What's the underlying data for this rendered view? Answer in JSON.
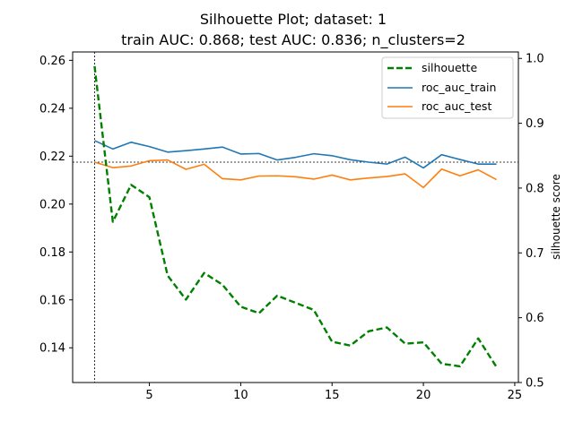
{
  "chart_data": {
    "type": "line",
    "title": "Silhouette Plot; dataset: 1",
    "subtitle": "train AUC: 0.868; test AUC: 0.836; n_clusters=2",
    "xlabel": "",
    "ylabel_left": "",
    "ylabel_right": "silhouette score",
    "xlim": [
      0.8,
      25.2
    ],
    "ylim_left": [
      0.1255,
      0.2635
    ],
    "ylim_right": [
      0.5,
      1.01
    ],
    "x_ticks": [
      5,
      10,
      15,
      20,
      25
    ],
    "y_left_ticks": [
      0.14,
      0.16,
      0.18,
      0.2,
      0.22,
      0.24,
      0.26
    ],
    "y_right_ticks": [
      0.5,
      0.6,
      0.7,
      0.8,
      0.9,
      1.0
    ],
    "reference_lines": {
      "vertical_x": 2,
      "horizontal_y_left": 0.2175
    },
    "legend_position": "upper right",
    "grid": false,
    "x": [
      2,
      3,
      4,
      5,
      6,
      7,
      8,
      9,
      10,
      11,
      12,
      13,
      14,
      15,
      16,
      17,
      18,
      19,
      20,
      21,
      22,
      23,
      24
    ],
    "series": [
      {
        "name": "silhouette",
        "axis": "right",
        "style": "dashed",
        "color": "#008000",
        "values": [
          0.988,
          0.748,
          0.805,
          0.786,
          0.665,
          0.628,
          0.669,
          0.651,
          0.617,
          0.607,
          0.634,
          0.623,
          0.612,
          0.563,
          0.557,
          0.579,
          0.585,
          0.56,
          0.562,
          0.529,
          0.525,
          0.568,
          0.524
        ]
      },
      {
        "name": "roc_auc_train",
        "axis": "left",
        "style": "solid",
        "color": "#1f77b4",
        "values": [
          0.2265,
          0.223,
          0.2258,
          0.224,
          0.2217,
          0.2223,
          0.223,
          0.2238,
          0.2209,
          0.2211,
          0.2184,
          0.2195,
          0.221,
          0.2202,
          0.2185,
          0.2175,
          0.2167,
          0.2196,
          0.2151,
          0.2206,
          0.2186,
          0.2167,
          0.2167
        ]
      },
      {
        "name": "roc_auc_test",
        "axis": "left",
        "style": "solid",
        "color": "#ff7f0e",
        "values": [
          0.2175,
          0.2152,
          0.2159,
          0.2181,
          0.2184,
          0.2145,
          0.2166,
          0.2106,
          0.2101,
          0.2117,
          0.2118,
          0.2114,
          0.2104,
          0.2121,
          0.2101,
          0.2109,
          0.2115,
          0.2126,
          0.2069,
          0.2146,
          0.2118,
          0.2143,
          0.2102
        ]
      }
    ]
  }
}
